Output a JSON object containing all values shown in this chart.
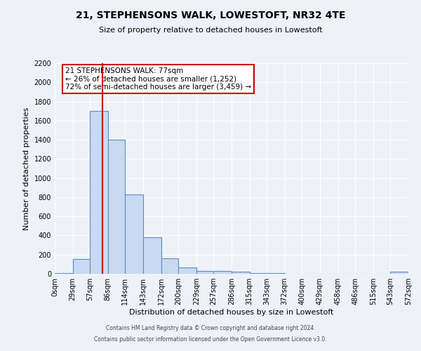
{
  "title": "21, STEPHENSONS WALK, LOWESTOFT, NR32 4TE",
  "subtitle": "Size of property relative to detached houses in Lowestoft",
  "xlabel": "Distribution of detached houses by size in Lowestoft",
  "ylabel": "Number of detached properties",
  "property_size": 77,
  "bin_edges": [
    0,
    29,
    57,
    86,
    114,
    143,
    172,
    200,
    229,
    257,
    286,
    315,
    343,
    372,
    400,
    429,
    458,
    486,
    515,
    543,
    572
  ],
  "bin_counts": [
    10,
    155,
    1700,
    1400,
    830,
    385,
    160,
    65,
    30,
    30,
    20,
    10,
    10,
    0,
    0,
    0,
    0,
    0,
    0,
    25
  ],
  "bar_color": "#c9d9f0",
  "bar_edge_color": "#5b8cc8",
  "vline_x": 77,
  "vline_color": "#cc0000",
  "ylim": [
    0,
    2200
  ],
  "yticks": [
    0,
    200,
    400,
    600,
    800,
    1000,
    1200,
    1400,
    1600,
    1800,
    2000,
    2200
  ],
  "annotation_title": "21 STEPHENSONS WALK: 77sqm",
  "annotation_line1": "← 26% of detached houses are smaller (1,252)",
  "annotation_line2": "72% of semi-detached houses are larger (3,459) →",
  "annotation_box_color": "#ffffff",
  "annotation_box_edge": "#cc0000",
  "footer_line1": "Contains HM Land Registry data © Crown copyright and database right 2024.",
  "footer_line2": "Contains public sector information licensed under the Open Government Licence v3.0.",
  "tick_labels": [
    "0sqm",
    "29sqm",
    "57sqm",
    "86sqm",
    "114sqm",
    "143sqm",
    "172sqm",
    "200sqm",
    "229sqm",
    "257sqm",
    "286sqm",
    "315sqm",
    "343sqm",
    "372sqm",
    "400sqm",
    "429sqm",
    "458sqm",
    "486sqm",
    "515sqm",
    "543sqm",
    "572sqm"
  ],
  "bg_color": "#eef2f8"
}
